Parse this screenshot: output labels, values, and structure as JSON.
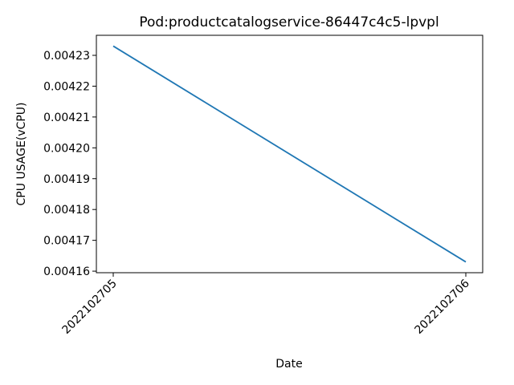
{
  "chart_data": {
    "type": "line",
    "title": "Pod:productcatalogservice-86447c4c5-lpvpl",
    "xlabel": "Date",
    "ylabel": "CPU USAGE(vCPU)",
    "categories": [
      "2022102705",
      "2022102706"
    ],
    "series": [
      {
        "values": [
          0.004233,
          0.004163
        ]
      }
    ],
    "yticks": [
      0.00416,
      0.00417,
      0.00418,
      0.00419,
      0.0042,
      0.00421,
      0.00422,
      0.00423
    ],
    "ytick_labels": [
      "0.00416",
      "0.00417",
      "0.00418",
      "0.00419",
      "0.00420",
      "0.00421",
      "0.00422",
      "0.00423"
    ],
    "ylim": [
      0.0041595,
      0.0042365
    ],
    "x_tick_rotation": 45,
    "grid": false,
    "colors": {
      "line": "#1f77b4",
      "axis": "#000000"
    }
  }
}
